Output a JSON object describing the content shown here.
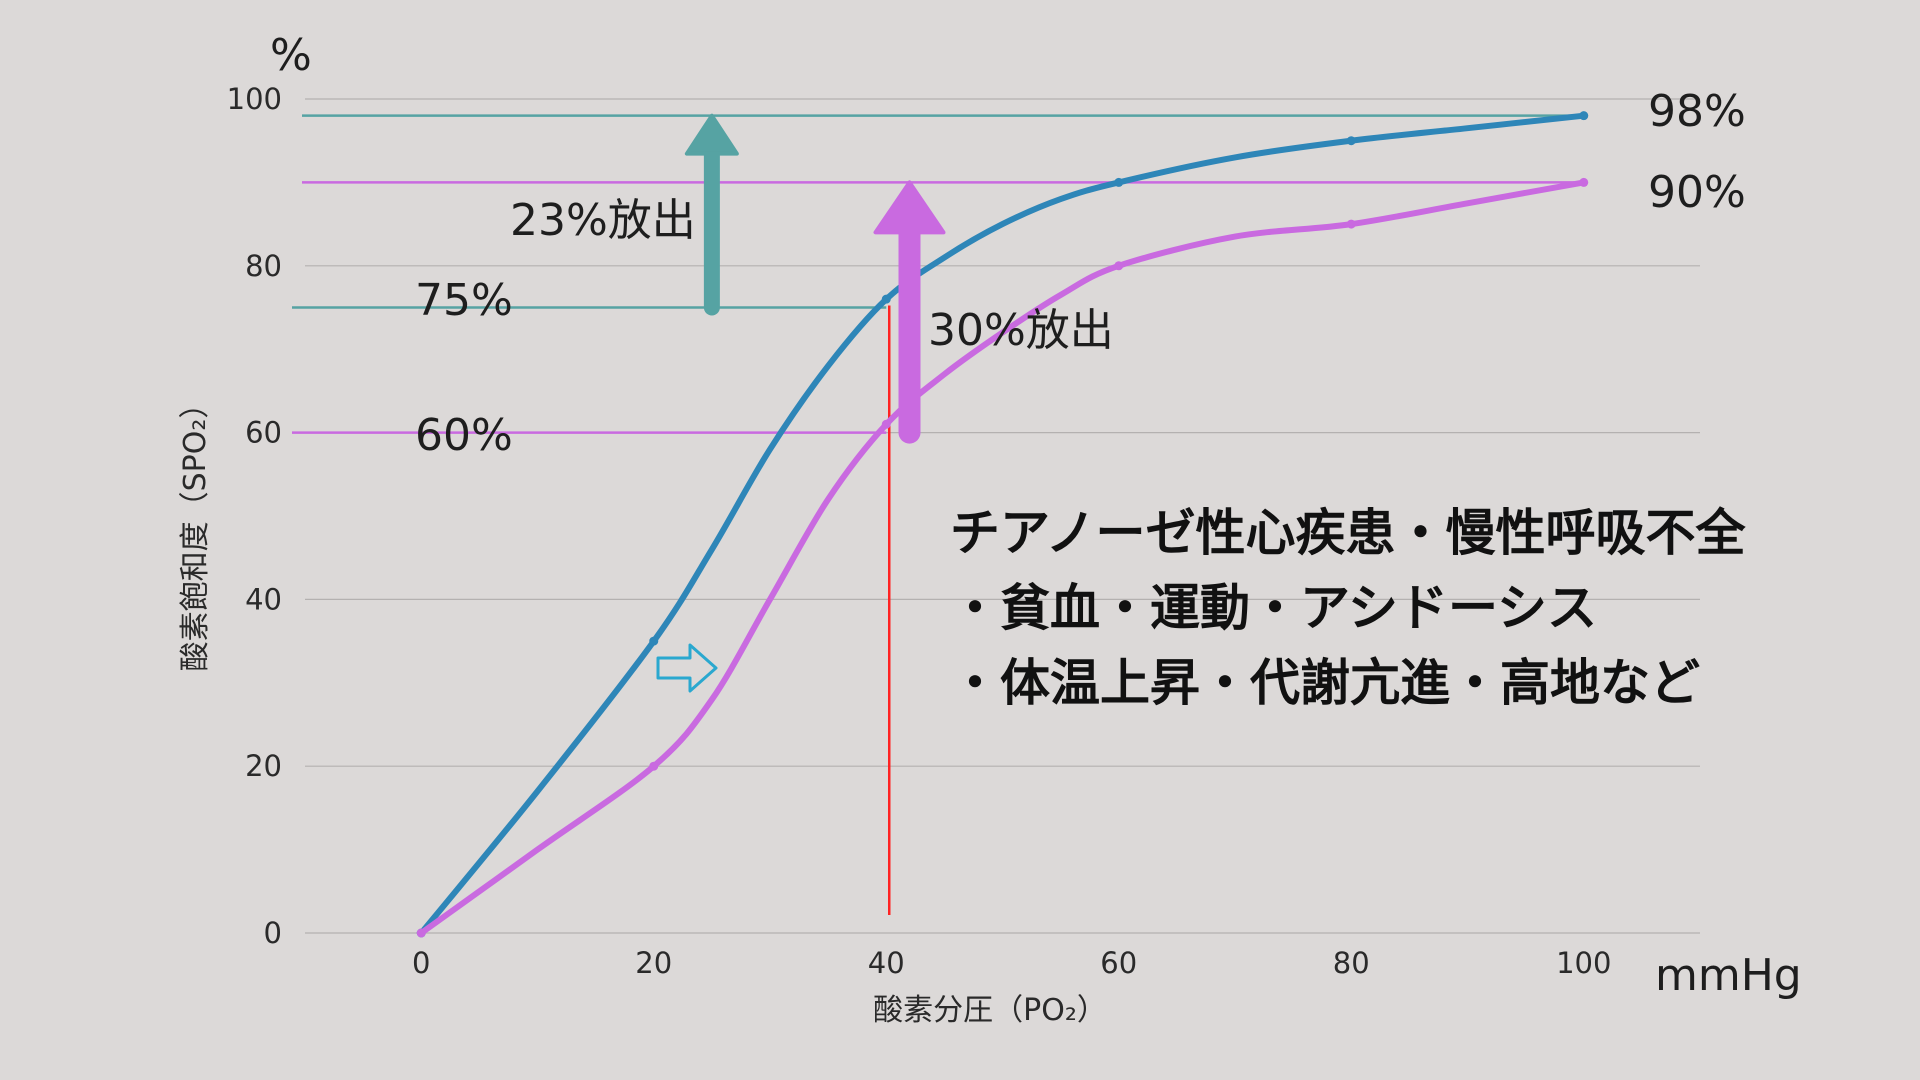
{
  "colors": {
    "background": "#dcd9d8",
    "grid": "#b4b1b0",
    "series_normal": "#2e86b8",
    "series_shifted": "#c96ae0",
    "ref_normal": "#56a3a3",
    "ref_shifted": "#c96ae0",
    "vline": "#ff2222",
    "shift_arrow": "#2aa8cf"
  },
  "icons": {
    "shift_arrow": "right-outline-arrow-icon"
  },
  "chart_data": {
    "type": "line",
    "xlabel": "酸素分圧（PO₂）",
    "ylabel": "酸素飽和度（SPO₂）",
    "x_unit": "mmHg",
    "y_unit": "%",
    "xlim": [
      -10,
      110
    ],
    "ylim": [
      0,
      100
    ],
    "x_ticks": [
      0,
      20,
      40,
      60,
      80,
      100
    ],
    "y_ticks": [
      0,
      20,
      40,
      60,
      80,
      100
    ],
    "grid": true,
    "series": [
      {
        "name": "",
        "points": [
          [
            0,
            0
          ],
          [
            10,
            17
          ],
          [
            20,
            35
          ],
          [
            25,
            46
          ],
          [
            30,
            58
          ],
          [
            35,
            68
          ],
          [
            40,
            76
          ],
          [
            45,
            81
          ],
          [
            50,
            85
          ],
          [
            55,
            88
          ],
          [
            60,
            90
          ],
          [
            70,
            93
          ],
          [
            80,
            95
          ],
          [
            90,
            96.5
          ],
          [
            100,
            98
          ]
        ]
      },
      {
        "name": "",
        "points": [
          [
            0,
            0
          ],
          [
            10,
            10
          ],
          [
            20,
            20
          ],
          [
            25,
            28
          ],
          [
            30,
            40
          ],
          [
            35,
            52
          ],
          [
            40,
            61
          ],
          [
            45,
            67
          ],
          [
            50,
            72
          ],
          [
            55,
            76.5
          ],
          [
            60,
            80
          ],
          [
            70,
            83.5
          ],
          [
            80,
            85
          ],
          [
            90,
            87.5
          ],
          [
            100,
            90
          ]
        ]
      }
    ],
    "reference_lines": [
      {
        "series": 0,
        "value": 98,
        "label": "98%"
      },
      {
        "series": 1,
        "value": 90,
        "label": "90%"
      },
      {
        "series": 0,
        "value": 75,
        "label": "75%"
      },
      {
        "series": 1,
        "value": 60,
        "label": "60%"
      }
    ],
    "vertical_line": {
      "x": 40
    },
    "annotations": [
      {
        "text": "23%放出",
        "from": 75,
        "to": 98,
        "arrow_x": 25
      },
      {
        "text": "30%放出",
        "from": 60,
        "to": 90,
        "arrow_x": 42
      }
    ],
    "notes": [
      " チアノーゼ性心疾患・慢性呼吸不全",
      "・貧血・運動・アシドーシス",
      "・体温上昇・代謝亢進・高地など"
    ]
  }
}
